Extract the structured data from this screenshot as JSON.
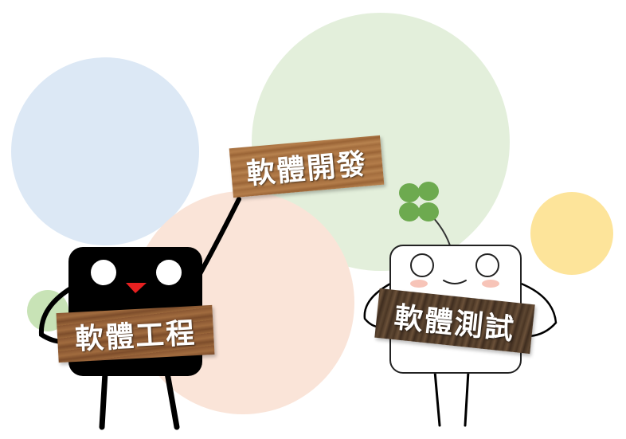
{
  "signs": {
    "development": "軟體開發",
    "engineering": "軟體工程",
    "testing": "軟體測試"
  },
  "colors": {
    "circle_blue": "#dce8f5",
    "circle_green_large": "#e3efdb",
    "circle_peach": "#fae4d8",
    "circle_yellow": "#fde49a",
    "circle_green_small": "#c8e3b6",
    "clover": "#6daa4f",
    "black_character": "#000000",
    "beak": "#e62020",
    "cheeks": "#f7c4b8"
  },
  "characters": {
    "left": "black-square-character",
    "right": "white-square-character"
  }
}
